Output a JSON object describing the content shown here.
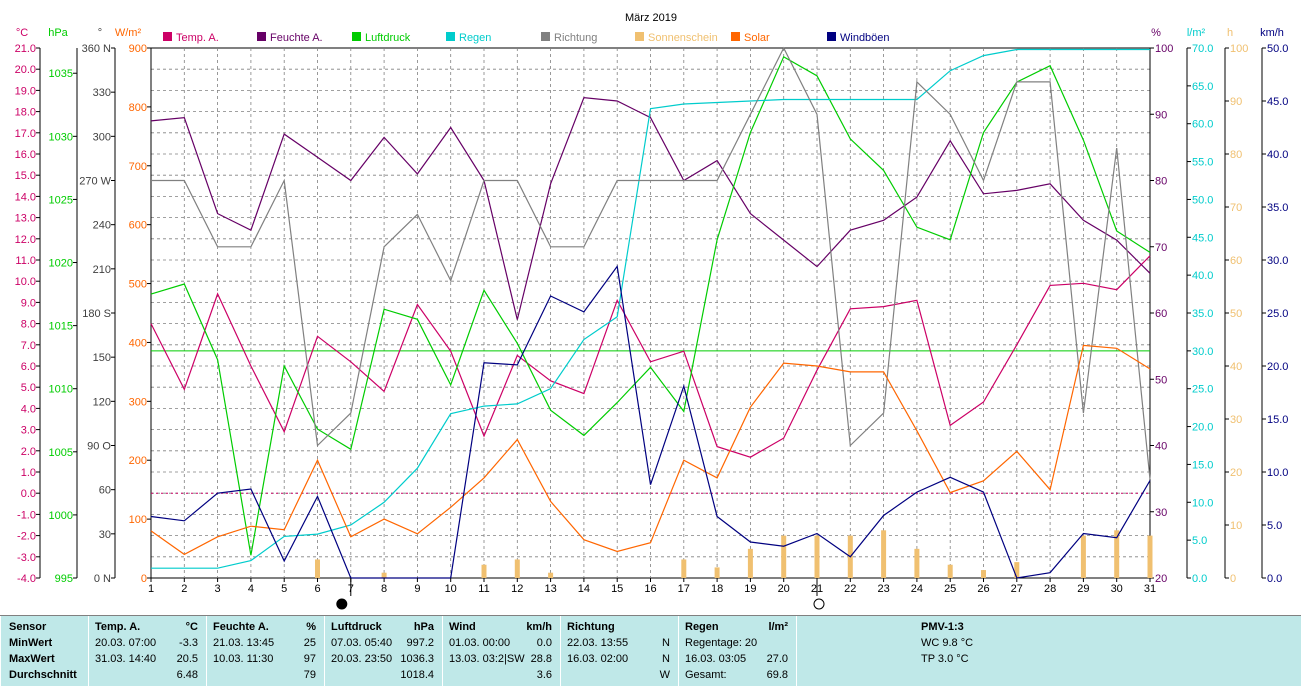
{
  "chart_data": {
    "type": "line",
    "title": "März 2019",
    "x": [
      1,
      2,
      3,
      4,
      5,
      6,
      7,
      8,
      9,
      10,
      11,
      12,
      13,
      14,
      15,
      16,
      17,
      18,
      19,
      20,
      21,
      22,
      23,
      24,
      25,
      26,
      27,
      28,
      29,
      30,
      31
    ],
    "x_ticks": [
      "1",
      "2",
      "3",
      "4",
      "5",
      "6",
      "7",
      "8",
      "9",
      "10",
      "11",
      "12",
      "13",
      "14",
      "15",
      "16",
      "17",
      "18",
      "19",
      "20",
      "21",
      "22",
      "23",
      "24",
      "25",
      "26",
      "27",
      "28",
      "29",
      "30",
      "31"
    ],
    "xlim": [
      1,
      31
    ],
    "grid": true,
    "legend_position": "top",
    "axes": {
      "temp": {
        "unit": "°C",
        "ylim": [
          -4,
          21
        ],
        "ticks": [
          "21.0",
          "20.0",
          "19.0",
          "18.0",
          "17.0",
          "16.0",
          "15.0",
          "14.0",
          "13.0",
          "12.0",
          "11.0",
          "10.0",
          "9.0",
          "8.0",
          "7.0",
          "6.0",
          "5.0",
          "4.0",
          "3.0",
          "2.0",
          "1.0",
          "0.0",
          "-1.0",
          "-2.0",
          "-3.0",
          "-4.0"
        ],
        "color": "#cc0066"
      },
      "pressure": {
        "unit": "hPa",
        "ylim": [
          995,
          1037
        ],
        "ticks": [
          "1035",
          "1030",
          "1025",
          "1020",
          "1015",
          "1010",
          "1005",
          "1000",
          "995"
        ],
        "color": "#00cc00"
      },
      "direction": {
        "unit": "°",
        "ylim": [
          0,
          360
        ],
        "ticks": [
          "360 N",
          "330",
          "300",
          "270 W",
          "240",
          "210",
          "180 S",
          "150",
          "120",
          "90  O",
          "60",
          "30",
          "0  N"
        ],
        "color": "#404040"
      },
      "solar": {
        "unit": "W/m²",
        "ylim": [
          0,
          900
        ],
        "ticks": [
          "900",
          "800",
          "700",
          "600",
          "500",
          "400",
          "300",
          "200",
          "100",
          "0"
        ],
        "color": "#ff6600"
      },
      "humidity": {
        "unit": "%",
        "ylim": [
          20,
          100
        ],
        "ticks": [
          "100",
          "90",
          "80",
          "70",
          "60",
          "50",
          "40",
          "30",
          "20"
        ],
        "color": "#660066"
      },
      "rain": {
        "unit": "l/m²",
        "ylim": [
          0,
          70
        ],
        "ticks": [
          "70.0",
          "65.0",
          "60.0",
          "55.0",
          "50.0",
          "45.0",
          "40.0",
          "35.0",
          "30.0",
          "25.0",
          "20.0",
          "15.0",
          "10.0",
          "5.0",
          "0.0"
        ],
        "color": "#00cccc"
      },
      "sunshine": {
        "unit": "h",
        "ylim": [
          0,
          100
        ],
        "ticks": [
          "100",
          "90",
          "80",
          "70",
          "60",
          "50",
          "40",
          "30",
          "20",
          "10",
          "0"
        ],
        "color": "#f0c070"
      },
      "wind": {
        "unit": "km/h",
        "ylim": [
          0,
          50
        ],
        "ticks": [
          "50.0",
          "45.0",
          "40.0",
          "35.0",
          "30.0",
          "25.0",
          "20.0",
          "15.0",
          "10.0",
          "5.0",
          "0.0"
        ],
        "color": "#000080"
      }
    },
    "reference_lines": [
      {
        "axis": "temp",
        "value": 0,
        "color": "#cc0066",
        "style": "dotted"
      },
      {
        "axis": "pressure",
        "value": 1013,
        "color": "#00cc00",
        "style": "solid"
      }
    ],
    "markers": [
      {
        "x": 7,
        "symbol": "new-moon"
      },
      {
        "x": 21,
        "symbol": "full-moon"
      }
    ],
    "series": [
      {
        "name": "Temp. A.",
        "axis": "temp",
        "color": "#cc0066",
        "values": [
          8.0,
          4.9,
          9.4,
          6.0,
          2.9,
          7.4,
          6.2,
          4.8,
          8.9,
          6.7,
          2.7,
          6.5,
          5.3,
          4.7,
          9.1,
          6.2,
          6.7,
          2.2,
          1.7,
          2.6,
          5.8,
          8.7,
          8.8,
          9.1,
          3.2,
          4.3,
          7.0,
          9.8,
          9.9,
          9.6,
          11.2
        ]
      },
      {
        "name": "Feuchte A.",
        "axis": "humidity",
        "color": "#660066",
        "values": [
          89,
          89.5,
          75,
          72.5,
          87,
          83.5,
          80,
          86.5,
          81,
          88,
          80,
          59,
          79.5,
          92.5,
          92,
          89.5,
          80,
          83,
          75,
          71,
          67,
          72.5,
          74,
          77.5,
          86,
          78,
          78.5,
          79.5,
          74,
          71,
          66
        ]
      },
      {
        "name": "Luftdruck",
        "axis": "pressure",
        "color": "#00cc00",
        "values": [
          1017.5,
          1018.3,
          1012.3,
          996.8,
          1011.8,
          1006.8,
          1005.2,
          1016.3,
          1015.5,
          1010.3,
          1017.8,
          1013.6,
          1008.3,
          1006.3,
          1008.9,
          1011.7,
          1008.2,
          1021.8,
          1030.3,
          1036.3,
          1034.8,
          1029.8,
          1027.3,
          1022.8,
          1021.8,
          1030.3,
          1034.3,
          1035.6,
          1029.7,
          1022.5,
          1020.8
        ]
      },
      {
        "name": "Regen",
        "axis": "rain",
        "color": "#00cccc",
        "values": [
          1.3,
          1.3,
          1.3,
          2.3,
          5.5,
          5.8,
          7.0,
          10.0,
          14.5,
          21.7,
          22.7,
          23.0,
          25.0,
          31.5,
          34.5,
          62.0,
          62.6,
          62.8,
          63.0,
          63.2,
          63.2,
          63.2,
          63.2,
          63.2,
          67.0,
          69.0,
          69.8,
          69.8,
          69.8,
          69.8,
          69.8
        ]
      },
      {
        "name": "Richtung",
        "axis": "direction",
        "color": "#808080",
        "values": [
          270,
          270,
          225,
          225,
          270,
          90,
          112,
          225,
          247,
          202,
          270,
          270,
          225,
          225,
          270,
          270,
          270,
          270,
          315,
          360,
          315,
          90,
          112,
          337,
          315,
          270,
          337,
          337,
          112,
          292,
          67
        ]
      },
      {
        "name": "Sonnenschein",
        "axis": "sunshine",
        "color": "#f0c070",
        "type": "bar",
        "values": [
          0,
          0,
          0,
          0,
          0,
          3.5,
          0,
          1,
          0,
          0,
          2.5,
          3.5,
          1,
          0,
          0,
          0,
          3.5,
          2,
          5.5,
          8,
          8,
          8,
          9,
          5.5,
          2.5,
          1.5,
          3,
          0,
          8,
          9,
          8
        ]
      },
      {
        "name": "Solar",
        "axis": "solar",
        "color": "#ff6600",
        "values": [
          80,
          40,
          70,
          88,
          82,
          200,
          70,
          100,
          75,
          120,
          170,
          235,
          130,
          65,
          45,
          60,
          200,
          170,
          290,
          365,
          360,
          350,
          350,
          250,
          145,
          165,
          215,
          150,
          395,
          390,
          355
        ]
      },
      {
        "name": "Windböen",
        "axis": "wind",
        "color": "#000080",
        "values": [
          5.8,
          5.4,
          8.0,
          8.4,
          1.6,
          7.7,
          0,
          0,
          0,
          0,
          20.3,
          20.1,
          26.6,
          25.1,
          29.4,
          8.8,
          18.1,
          5.8,
          3.4,
          3.0,
          4.2,
          2.0,
          5.9,
          8.1,
          9.5,
          8.1,
          0,
          0.5,
          4.2,
          3.8,
          9.2
        ]
      }
    ]
  },
  "stats": {
    "sensor": {
      "header": "Sensor",
      "min": "MinWert",
      "max": "MaxWert",
      "avg": "Durchschnitt"
    },
    "temp": {
      "header": "Temp. A.",
      "unit": "°C",
      "min_date": "20.03.  07:00",
      "min_val": "-3.3",
      "max_date": "31.03.  14:40",
      "max_val": "20.5",
      "avg": "6.48"
    },
    "humidity": {
      "header": "Feuchte A.",
      "unit": "%",
      "min_date": "21.03.  13:45",
      "min_val": "25",
      "max_date": "10.03.  11:30",
      "max_val": "97",
      "avg": "79"
    },
    "pressure": {
      "header": "Luftdruck",
      "unit": "hPa",
      "min_date": "07.03.  05:40",
      "min_val": "997.2",
      "max_date": "20.03.  23:50",
      "max_val": "1036.3",
      "avg": "1018.4"
    },
    "wind": {
      "header": "Wind",
      "unit": "km/h",
      "min_date": "01.03.  00:00",
      "min_val": "0.0",
      "max_date": "13.03.  03:2|SW",
      "max_val": "28.8",
      "avg": "3.6"
    },
    "direction": {
      "header": "Richtung",
      "min_date": "22.03.  13:55",
      "min_val": "N",
      "max_date": "16.03.  02:00",
      "max_val": "N",
      "avg": "W"
    },
    "rain": {
      "header": "Regen",
      "unit": "l/m²",
      "line1": "Regentage: 20",
      "line2_date": "16.03.  03:05",
      "line2_val": "27.0",
      "line3_label": "Gesamt:",
      "line3_val": "69.8"
    },
    "pmv": {
      "header": "PMV-1:3",
      "wc": "WC 9.8 °C",
      "tp": "TP 3.0 °C"
    }
  }
}
